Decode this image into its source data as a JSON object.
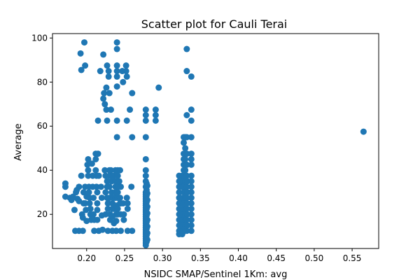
{
  "chart_data": {
    "type": "scatter",
    "title": "Scatter plot for Cauli Terai",
    "xlabel": "NSIDC SMAP/Sentinel 1Km: avg",
    "ylabel": "Average",
    "xlim": [
      0.155,
      0.585
    ],
    "ylim": [
      4.5,
      102
    ],
    "xticks": [
      0.2,
      0.25,
      0.3,
      0.35,
      0.4,
      0.45,
      0.5,
      0.55
    ],
    "xtick_labels": [
      "0.20",
      "0.25",
      "0.30",
      "0.35",
      "0.40",
      "0.45",
      "0.50",
      "0.55"
    ],
    "yticks": [
      20,
      40,
      60,
      80,
      100
    ],
    "ytick_labels": [
      "20",
      "40",
      "60",
      "80",
      "100"
    ],
    "grid": false,
    "marker_color": "#1f77b4",
    "points": [
      [
        0.172,
        34
      ],
      [
        0.172,
        32.5
      ],
      [
        0.172,
        28
      ],
      [
        0.178,
        27.5
      ],
      [
        0.18,
        26.5
      ],
      [
        0.182,
        28
      ],
      [
        0.184,
        22
      ],
      [
        0.185,
        12.5
      ],
      [
        0.186,
        30
      ],
      [
        0.187,
        31
      ],
      [
        0.188,
        27
      ],
      [
        0.19,
        32.5
      ],
      [
        0.19,
        26
      ],
      [
        0.19,
        12.5
      ],
      [
        0.192,
        93
      ],
      [
        0.193,
        85.5
      ],
      [
        0.193,
        37.5
      ],
      [
        0.194,
        20
      ],
      [
        0.195,
        18.5
      ],
      [
        0.195,
        12.5
      ],
      [
        0.196,
        30
      ],
      [
        0.196,
        25
      ],
      [
        0.197,
        98
      ],
      [
        0.198,
        87.5
      ],
      [
        0.198,
        32.5
      ],
      [
        0.198,
        25
      ],
      [
        0.199,
        22
      ],
      [
        0.2,
        28
      ],
      [
        0.2,
        17
      ],
      [
        0.201,
        42.5
      ],
      [
        0.202,
        45
      ],
      [
        0.202,
        40
      ],
      [
        0.202,
        37.5
      ],
      [
        0.203,
        32.5
      ],
      [
        0.203,
        30
      ],
      [
        0.204,
        27.5
      ],
      [
        0.204,
        25
      ],
      [
        0.205,
        22.5
      ],
      [
        0.205,
        20
      ],
      [
        0.206,
        17.5
      ],
      [
        0.207,
        43
      ],
      [
        0.208,
        37.5
      ],
      [
        0.208,
        32.5
      ],
      [
        0.209,
        27.5
      ],
      [
        0.209,
        20
      ],
      [
        0.21,
        17.5
      ],
      [
        0.21,
        12.5
      ],
      [
        0.212,
        47.5
      ],
      [
        0.212,
        45
      ],
      [
        0.212,
        40
      ],
      [
        0.213,
        37.5
      ],
      [
        0.213,
        32.5
      ],
      [
        0.214,
        30
      ],
      [
        0.214,
        25
      ],
      [
        0.214,
        22
      ],
      [
        0.214,
        17.5
      ],
      [
        0.215,
        47.5
      ],
      [
        0.215,
        62.5
      ],
      [
        0.216,
        37.5
      ],
      [
        0.216,
        12.5
      ],
      [
        0.218,
        85
      ],
      [
        0.219,
        32.5
      ],
      [
        0.22,
        27.5
      ],
      [
        0.22,
        19.5
      ],
      [
        0.221,
        13
      ],
      [
        0.222,
        92.5
      ],
      [
        0.222,
        72.5
      ],
      [
        0.223,
        75
      ],
      [
        0.224,
        70
      ],
      [
        0.224,
        40
      ],
      [
        0.225,
        37.5
      ],
      [
        0.225,
        30
      ],
      [
        0.225,
        20
      ],
      [
        0.226,
        77.5
      ],
      [
        0.226,
        67.5
      ],
      [
        0.227,
        87.5
      ],
      [
        0.227,
        62.5
      ],
      [
        0.227,
        35
      ],
      [
        0.227,
        32.5
      ],
      [
        0.227,
        27.5
      ],
      [
        0.228,
        25
      ],
      [
        0.228,
        22.5
      ],
      [
        0.228,
        12.5
      ],
      [
        0.229,
        85
      ],
      [
        0.229,
        82.5
      ],
      [
        0.23,
        75
      ],
      [
        0.23,
        40
      ],
      [
        0.23,
        37.5
      ],
      [
        0.23,
        32.5
      ],
      [
        0.23,
        27.5
      ],
      [
        0.231,
        20
      ],
      [
        0.231,
        17.5
      ],
      [
        0.232,
        67.5
      ],
      [
        0.232,
        40
      ],
      [
        0.233,
        37.5
      ],
      [
        0.233,
        35
      ],
      [
        0.233,
        30
      ],
      [
        0.234,
        25
      ],
      [
        0.234,
        22.5
      ],
      [
        0.234,
        19
      ],
      [
        0.234,
        12.5
      ],
      [
        0.235,
        27.5
      ],
      [
        0.236,
        37.5
      ],
      [
        0.236,
        22.5
      ],
      [
        0.236,
        16
      ],
      [
        0.238,
        40
      ],
      [
        0.238,
        35
      ],
      [
        0.238,
        32.5
      ],
      [
        0.238,
        30
      ],
      [
        0.238,
        27.5
      ],
      [
        0.239,
        24
      ],
      [
        0.239,
        20
      ],
      [
        0.239,
        17
      ],
      [
        0.239,
        12.5
      ],
      [
        0.24,
        98
      ],
      [
        0.24,
        95
      ],
      [
        0.24,
        87.5
      ],
      [
        0.24,
        85
      ],
      [
        0.24,
        82.5
      ],
      [
        0.24,
        78
      ],
      [
        0.24,
        62.5
      ],
      [
        0.24,
        55
      ],
      [
        0.241,
        40
      ],
      [
        0.241,
        37.5
      ],
      [
        0.241,
        35
      ],
      [
        0.241,
        32.5
      ],
      [
        0.241,
        30
      ],
      [
        0.241,
        27.5
      ],
      [
        0.241,
        22.5
      ],
      [
        0.241,
        20
      ],
      [
        0.243,
        35
      ],
      [
        0.244,
        27.5
      ],
      [
        0.244,
        40
      ],
      [
        0.244,
        25
      ],
      [
        0.245,
        32.5
      ],
      [
        0.245,
        25
      ],
      [
        0.245,
        20
      ],
      [
        0.245,
        12.5
      ],
      [
        0.247,
        85
      ],
      [
        0.248,
        80
      ],
      [
        0.248,
        25
      ],
      [
        0.249,
        20
      ],
      [
        0.249,
        17.5
      ],
      [
        0.252,
        87.5
      ],
      [
        0.252,
        85
      ],
      [
        0.253,
        82.5
      ],
      [
        0.253,
        62.5
      ],
      [
        0.253,
        27.5
      ],
      [
        0.254,
        25
      ],
      [
        0.254,
        22.5
      ],
      [
        0.254,
        12.5
      ],
      [
        0.257,
        67.5
      ],
      [
        0.259,
        32.5
      ],
      [
        0.26,
        75
      ],
      [
        0.26,
        55
      ],
      [
        0.26,
        12.5
      ],
      [
        0.278,
        67.5
      ],
      [
        0.278,
        65
      ],
      [
        0.278,
        62.5
      ],
      [
        0.278,
        55
      ],
      [
        0.278,
        45
      ],
      [
        0.278,
        40
      ],
      [
        0.278,
        37.5
      ],
      [
        0.278,
        35
      ],
      [
        0.278,
        32.5
      ],
      [
        0.278,
        30
      ],
      [
        0.278,
        29
      ],
      [
        0.278,
        28
      ],
      [
        0.278,
        27
      ],
      [
        0.278,
        26
      ],
      [
        0.278,
        25
      ],
      [
        0.278,
        24
      ],
      [
        0.278,
        23
      ],
      [
        0.278,
        22
      ],
      [
        0.278,
        21
      ],
      [
        0.278,
        20
      ],
      [
        0.278,
        19
      ],
      [
        0.278,
        18
      ],
      [
        0.278,
        17
      ],
      [
        0.278,
        16
      ],
      [
        0.278,
        15
      ],
      [
        0.278,
        14
      ],
      [
        0.278,
        13
      ],
      [
        0.278,
        12
      ],
      [
        0.278,
        11
      ],
      [
        0.278,
        10
      ],
      [
        0.278,
        9
      ],
      [
        0.278,
        8
      ],
      [
        0.278,
        7
      ],
      [
        0.278,
        6
      ],
      [
        0.279,
        34
      ],
      [
        0.279,
        31
      ],
      [
        0.279,
        28.5
      ],
      [
        0.279,
        25.5
      ],
      [
        0.279,
        22.5
      ],
      [
        0.279,
        19.5
      ],
      [
        0.279,
        16.5
      ],
      [
        0.279,
        13.5
      ],
      [
        0.279,
        10.5
      ],
      [
        0.279,
        7.5
      ],
      [
        0.28,
        33
      ],
      [
        0.28,
        29.5
      ],
      [
        0.28,
        26.5
      ],
      [
        0.28,
        23.5
      ],
      [
        0.28,
        20.5
      ],
      [
        0.28,
        17.5
      ],
      [
        0.28,
        14.5
      ],
      [
        0.28,
        11.5
      ],
      [
        0.28,
        8.5
      ],
      [
        0.291,
        67.5
      ],
      [
        0.291,
        65
      ],
      [
        0.291,
        62.5
      ],
      [
        0.295,
        77.5
      ],
      [
        0.322,
        37.5
      ],
      [
        0.322,
        35
      ],
      [
        0.322,
        32.5
      ],
      [
        0.322,
        30
      ],
      [
        0.322,
        27.5
      ],
      [
        0.322,
        25
      ],
      [
        0.322,
        22.5
      ],
      [
        0.322,
        20
      ],
      [
        0.322,
        17.5
      ],
      [
        0.322,
        15
      ],
      [
        0.322,
        12.5
      ],
      [
        0.322,
        11
      ],
      [
        0.324,
        35
      ],
      [
        0.324,
        27.5
      ],
      [
        0.324,
        21
      ],
      [
        0.324,
        18
      ],
      [
        0.324,
        14
      ],
      [
        0.324,
        12
      ],
      [
        0.326,
        37.5
      ],
      [
        0.326,
        32.5
      ],
      [
        0.326,
        25
      ],
      [
        0.326,
        22.5
      ],
      [
        0.326,
        17.5
      ],
      [
        0.326,
        15.5
      ],
      [
        0.326,
        12.5
      ],
      [
        0.326,
        11
      ],
      [
        0.328,
        55
      ],
      [
        0.328,
        52.5
      ],
      [
        0.328,
        47.5
      ],
      [
        0.328,
        45
      ],
      [
        0.328,
        42.5
      ],
      [
        0.328,
        40
      ],
      [
        0.328,
        37.5
      ],
      [
        0.328,
        35
      ],
      [
        0.328,
        32.5
      ],
      [
        0.328,
        30
      ],
      [
        0.328,
        27.5
      ],
      [
        0.328,
        25
      ],
      [
        0.328,
        22.5
      ],
      [
        0.328,
        20
      ],
      [
        0.328,
        17.5
      ],
      [
        0.328,
        15
      ],
      [
        0.328,
        12.5
      ],
      [
        0.33,
        55
      ],
      [
        0.33,
        50
      ],
      [
        0.33,
        47.5
      ],
      [
        0.33,
        45
      ],
      [
        0.33,
        42.5
      ],
      [
        0.33,
        40
      ],
      [
        0.33,
        35
      ],
      [
        0.33,
        30
      ],
      [
        0.33,
        27.5
      ],
      [
        0.33,
        25
      ],
      [
        0.33,
        20
      ],
      [
        0.33,
        17.5
      ],
      [
        0.33,
        15
      ],
      [
        0.33,
        12.5
      ],
      [
        0.332,
        95
      ],
      [
        0.332,
        85
      ],
      [
        0.332,
        65
      ],
      [
        0.332,
        55
      ],
      [
        0.332,
        47.5
      ],
      [
        0.332,
        42.5
      ],
      [
        0.332,
        37.5
      ],
      [
        0.332,
        32.5
      ],
      [
        0.332,
        27.5
      ],
      [
        0.332,
        22.5
      ],
      [
        0.332,
        17.5
      ],
      [
        0.332,
        12.5
      ],
      [
        0.333,
        35
      ],
      [
        0.333,
        30
      ],
      [
        0.333,
        25
      ],
      [
        0.333,
        20
      ],
      [
        0.333,
        15
      ],
      [
        0.338,
        82.5
      ],
      [
        0.338,
        67.5
      ],
      [
        0.338,
        62.5
      ],
      [
        0.338,
        55
      ],
      [
        0.338,
        47.5
      ],
      [
        0.338,
        45
      ],
      [
        0.338,
        42.5
      ],
      [
        0.338,
        37.5
      ],
      [
        0.338,
        35
      ],
      [
        0.338,
        32.5
      ],
      [
        0.338,
        30
      ],
      [
        0.338,
        27.5
      ],
      [
        0.338,
        25
      ],
      [
        0.338,
        22.5
      ],
      [
        0.338,
        20
      ],
      [
        0.338,
        17.5
      ],
      [
        0.338,
        15
      ],
      [
        0.338,
        12.5
      ],
      [
        0.565,
        57.5
      ]
    ]
  }
}
